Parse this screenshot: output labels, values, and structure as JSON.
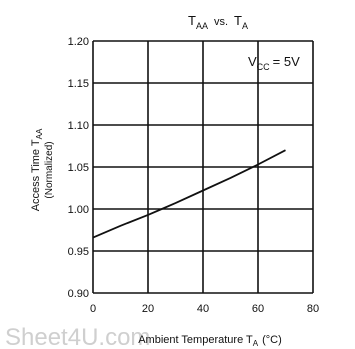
{
  "chart_data": {
    "type": "line",
    "title": {
      "main": "T",
      "main_sub": "AA",
      "vs": "vs.",
      "second": "T",
      "second_sub": "A"
    },
    "ylabel_line1": "Access Time T",
    "ylabel_line1_sub": "AA",
    "ylabel_line2": "(Normalized)",
    "xlabel_pre": "Ambient Temperature T",
    "xlabel_sub": "A",
    "xlabel_post": "(°C)",
    "annotation": {
      "main": "V",
      "sub": "CC",
      "rest": "= 5V"
    },
    "xlim": [
      0,
      80
    ],
    "ylim": [
      0.9,
      1.2
    ],
    "xticks": [
      0,
      20,
      40,
      60,
      80
    ],
    "xtick_labels": [
      "0",
      "20",
      "40",
      "60",
      "80"
    ],
    "yticks": [
      0.9,
      0.95,
      1.0,
      1.05,
      1.1,
      1.15,
      1.2
    ],
    "ytick_labels": [
      "0.90",
      "0.95",
      "1.00",
      "1.05",
      "1.10",
      "1.15",
      "1.20"
    ],
    "grid": true,
    "series": [
      {
        "x": [
          0,
          10,
          20,
          25,
          30,
          40,
          50,
          60,
          70
        ],
        "y": [
          0.966,
          0.98,
          0.993,
          1.0,
          1.007,
          1.022,
          1.037,
          1.053,
          1.07
        ]
      }
    ]
  },
  "watermark": "Sheet4U.com"
}
